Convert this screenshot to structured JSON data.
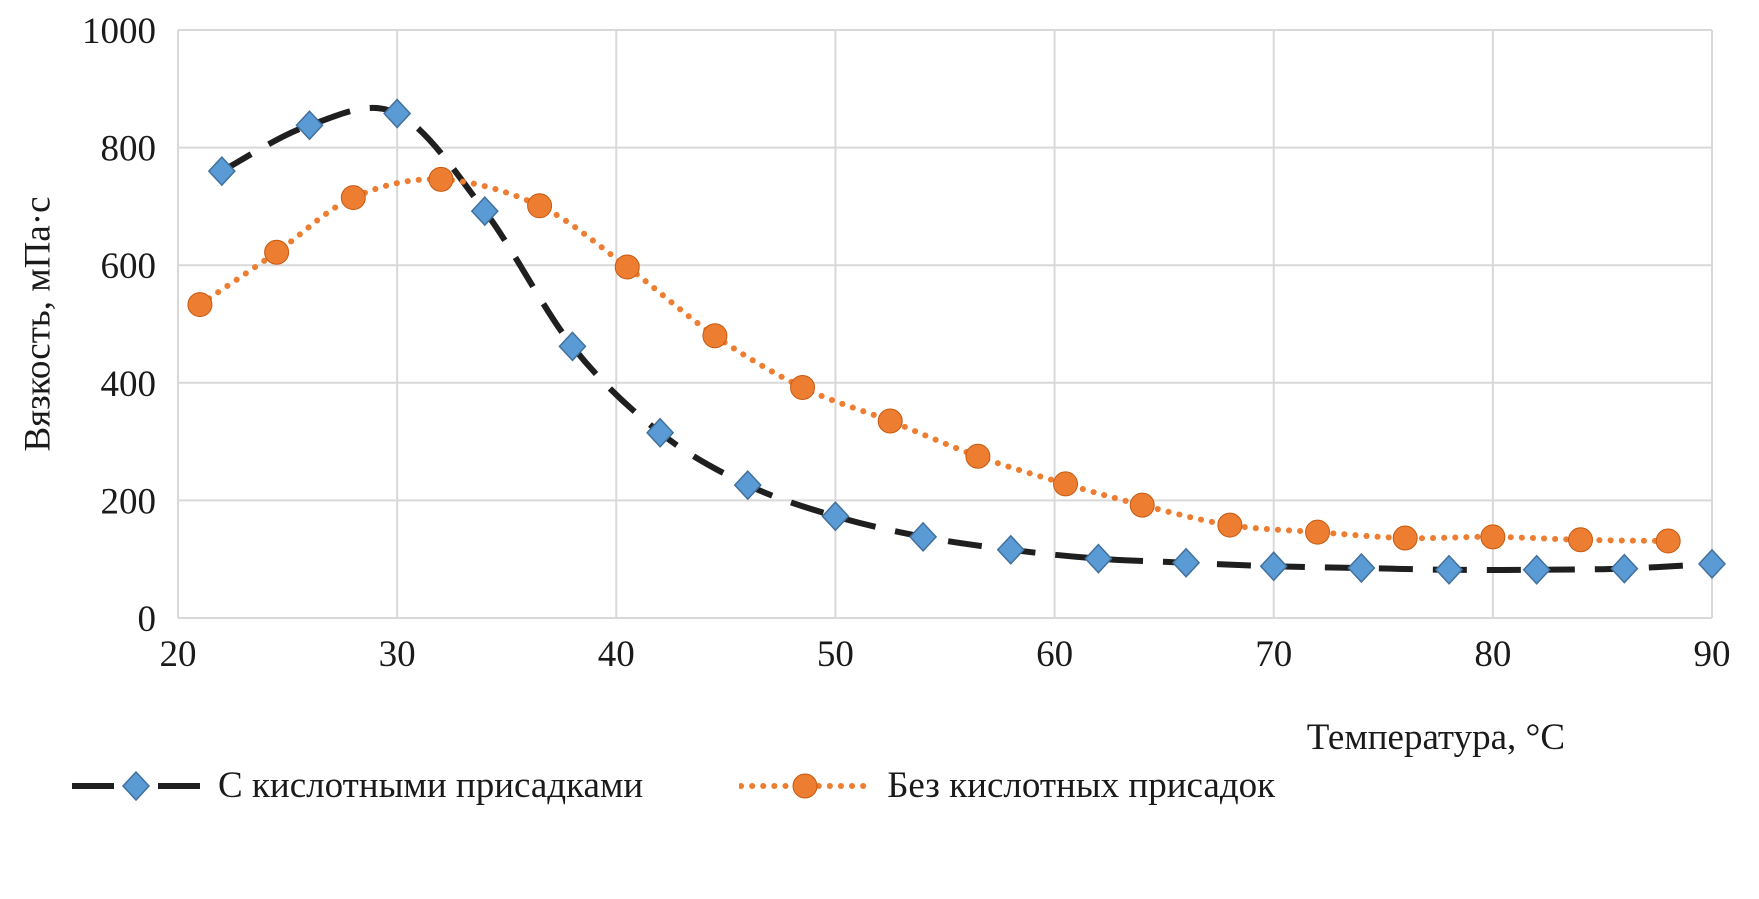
{
  "figure": {
    "background": "#ffffff",
    "text_color": "#1a1a1a",
    "grid_color": "#d9d9d9"
  },
  "chart_data": {
    "type": "line",
    "title": "",
    "xlabel": "Температура, °C",
    "ylabel": "Вязкость, мПа·с",
    "xlim": [
      20,
      90
    ],
    "ylim": [
      0,
      1000
    ],
    "xticks": [
      20,
      30,
      40,
      50,
      60,
      70,
      80,
      90
    ],
    "yticks": [
      0,
      200,
      400,
      600,
      800,
      1000
    ],
    "grid": true,
    "legend_position": "bottom-left",
    "series": [
      {
        "name": "С кислотными присадками",
        "marker": "diamond",
        "marker_color": "#5b9bd5",
        "marker_edge": "#41719c",
        "line_color": "#1f1f1f",
        "line_style": "dashed",
        "points": [
          [
            22,
            760
          ],
          [
            26,
            838
          ],
          [
            30,
            858
          ],
          [
            34,
            692
          ],
          [
            38,
            462
          ],
          [
            42,
            315
          ],
          [
            46,
            226
          ],
          [
            50,
            173
          ],
          [
            54,
            138
          ],
          [
            58,
            116
          ],
          [
            62,
            101
          ],
          [
            66,
            94
          ],
          [
            70,
            88
          ],
          [
            74,
            85
          ],
          [
            78,
            82
          ],
          [
            82,
            82
          ],
          [
            86,
            84
          ],
          [
            90,
            92
          ]
        ]
      },
      {
        "name": "Без кислотных присадок",
        "marker": "circle",
        "marker_color": "#ed7d31",
        "marker_edge": "#c55a11",
        "line_color": "#ed7d31",
        "line_style": "dotted",
        "points": [
          [
            21,
            533
          ],
          [
            24.5,
            622
          ],
          [
            28,
            715
          ],
          [
            32,
            746
          ],
          [
            36.5,
            701
          ],
          [
            40.5,
            597
          ],
          [
            44.5,
            480
          ],
          [
            48.5,
            392
          ],
          [
            52.5,
            335
          ],
          [
            56.5,
            275
          ],
          [
            60.5,
            228
          ],
          [
            64,
            192
          ],
          [
            68,
            158
          ],
          [
            72,
            146
          ],
          [
            76,
            136
          ],
          [
            80,
            138
          ],
          [
            84,
            133
          ],
          [
            88,
            131
          ]
        ]
      }
    ]
  }
}
